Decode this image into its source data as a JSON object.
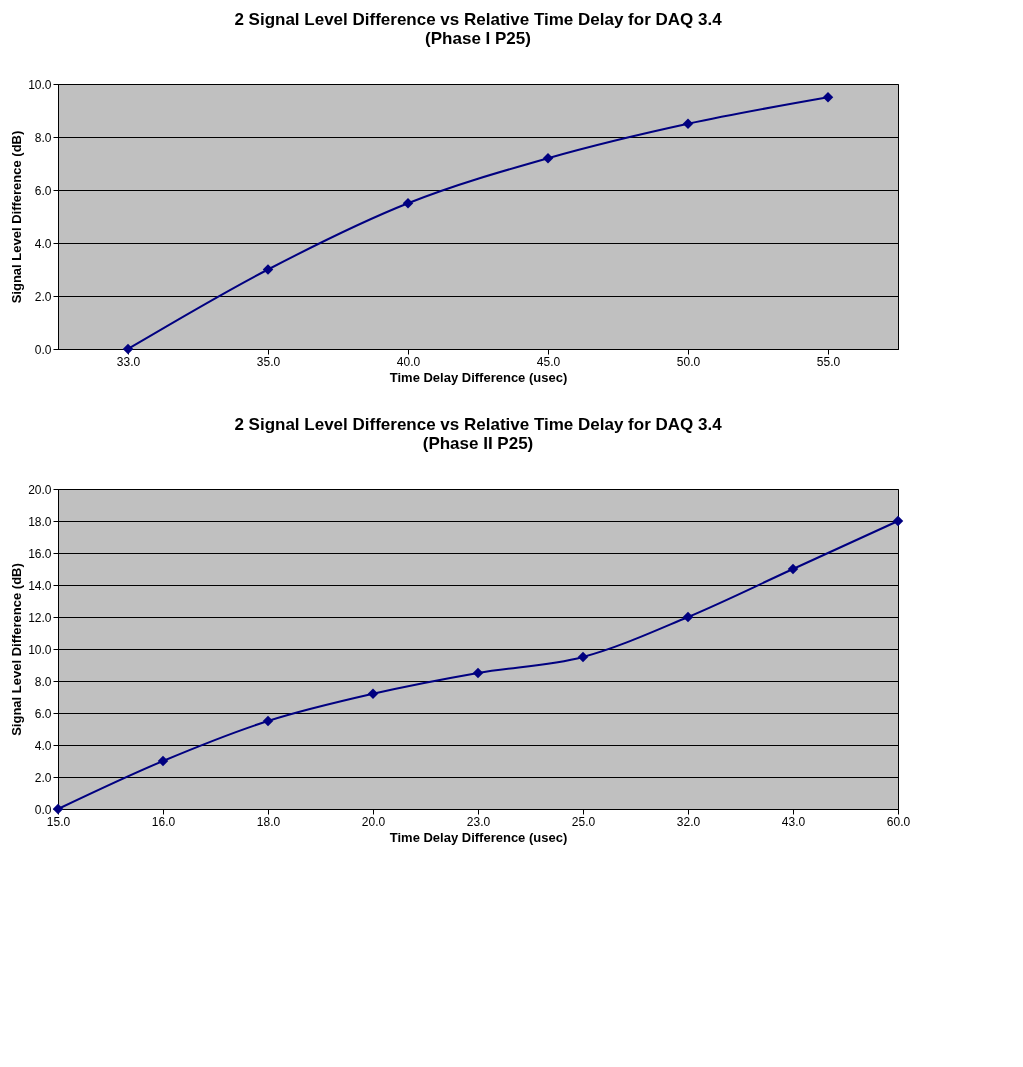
{
  "chart_data": [
    {
      "type": "line",
      "title": "2 Signal Level Difference vs Relative Time Delay for DAQ 3.4\n(Phase I P25)",
      "xlabel": "Time Delay Difference (usec)",
      "ylabel": "Signal Level Difference (dB)",
      "categories": [
        "33.0",
        "35.0",
        "40.0",
        "45.0",
        "50.0",
        "55.0"
      ],
      "series": [
        {
          "color": "#000080",
          "values": [
            0.0,
            3.0,
            5.5,
            7.2,
            8.5,
            9.5
          ]
        }
      ],
      "ylim": [
        0,
        10
      ],
      "yticks": [
        {
          "value": 0,
          "label": "0.0"
        },
        {
          "value": 2,
          "label": "2.0"
        },
        {
          "value": 4,
          "label": "4.0"
        },
        {
          "value": 6,
          "label": "6.0"
        },
        {
          "value": 8,
          "label": "8.0"
        },
        {
          "value": 10,
          "label": "10.0"
        }
      ],
      "grid": "y",
      "marker": "diamond",
      "line_style": "solid"
    },
    {
      "type": "line",
      "title": "2 Signal Level Difference vs Relative Time Delay for DAQ 3.4\n(Phase II P25)",
      "xlabel": "Time Delay Difference (usec)",
      "ylabel": "Signal Level Difference (dB)",
      "categories": [
        "15.0",
        "16.0",
        "18.0",
        "20.0",
        "23.0",
        "25.0",
        "32.0",
        "43.0",
        "60.0"
      ],
      "series": [
        {
          "color": "#000080",
          "values": [
            0.0,
            3.0,
            5.5,
            7.2,
            8.5,
            9.5,
            12.0,
            15.0,
            18.0
          ]
        }
      ],
      "ylim": [
        0,
        20
      ],
      "yticks": [
        {
          "value": 0,
          "label": "0.0"
        },
        {
          "value": 2,
          "label": "2.0"
        },
        {
          "value": 4,
          "label": "4.0"
        },
        {
          "value": 6,
          "label": "6.0"
        },
        {
          "value": 8,
          "label": "8.0"
        },
        {
          "value": 10,
          "label": "10.0"
        },
        {
          "value": 12,
          "label": "12.0"
        },
        {
          "value": 14,
          "label": "14.0"
        },
        {
          "value": 16,
          "label": "16.0"
        },
        {
          "value": 18,
          "label": "18.0"
        },
        {
          "value": 20,
          "label": "20.0"
        }
      ],
      "grid": "y",
      "marker": "diamond",
      "line_style": "solid"
    }
  ]
}
